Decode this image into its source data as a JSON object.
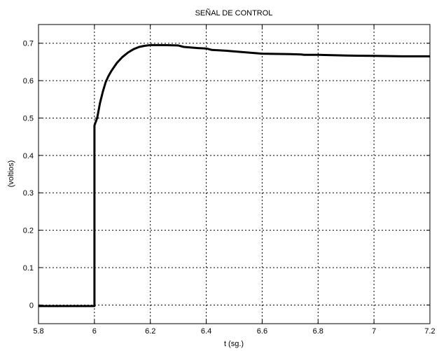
{
  "chart_data": {
    "type": "line",
    "title": "SEÑAL DE CONTROL",
    "xlabel": "t (sg.)",
    "ylabel": "(voltios)",
    "xlim": [
      5.8,
      7.2
    ],
    "ylim": [
      -0.05,
      0.75
    ],
    "xticks": [
      5.8,
      6,
      6.2,
      6.4,
      6.6,
      6.8,
      7,
      7.2
    ],
    "xtick_labels": [
      "5.8",
      "6",
      "6.2",
      "6.4",
      "6.6",
      "6.8",
      "7",
      "7.2"
    ],
    "yticks": [
      0,
      0.1,
      0.2,
      0.3,
      0.4,
      0.5,
      0.6,
      0.7
    ],
    "ytick_labels": [
      "0",
      "0.1",
      "0.2",
      "0.3",
      "0.4",
      "0.5",
      "0.6",
      "0.7"
    ],
    "grid": true,
    "line_color": "#000000",
    "series": [
      {
        "x": [
          5.8,
          6.0,
          6.0,
          6.01,
          6.02,
          6.03,
          6.04,
          6.05,
          6.06,
          6.08,
          6.1,
          6.12,
          6.14,
          6.16,
          6.18,
          6.2,
          6.25,
          6.3,
          6.32,
          6.37,
          6.4,
          6.42,
          6.47,
          6.5,
          6.55,
          6.6,
          6.7,
          6.74,
          6.75,
          6.8,
          6.9,
          7.0,
          7.1,
          7.2
        ],
        "y": [
          -0.003,
          -0.003,
          0.48,
          0.5,
          0.54,
          0.57,
          0.595,
          0.612,
          0.625,
          0.647,
          0.663,
          0.675,
          0.684,
          0.69,
          0.693,
          0.695,
          0.695,
          0.694,
          0.69,
          0.687,
          0.686,
          0.682,
          0.68,
          0.678,
          0.675,
          0.672,
          0.671,
          0.67,
          0.669,
          0.669,
          0.667,
          0.666,
          0.665,
          0.665
        ]
      }
    ]
  }
}
